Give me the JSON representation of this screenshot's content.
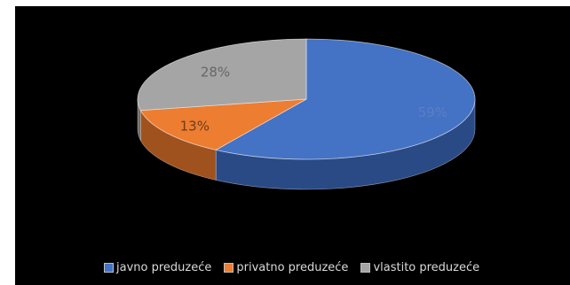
{
  "chart_data": {
    "type": "pie",
    "variant": "3d",
    "categories": [
      "javno preduzeće",
      "privatno preduzeće",
      "vlastito preduzeće"
    ],
    "values": [
      59,
      13,
      28
    ],
    "labels": [
      "59%",
      "13%",
      "28%"
    ],
    "colors": [
      "#4472C4",
      "#ED7D31",
      "#A5A5A5"
    ],
    "side_colors": [
      "#2A4A86",
      "#A0521E",
      "#6E6E6E"
    ],
    "label_colors": [
      "#5B7FC6",
      "#6B3E1C",
      "#666666"
    ],
    "legend_position": "bottom",
    "background": "#000000",
    "title": ""
  }
}
